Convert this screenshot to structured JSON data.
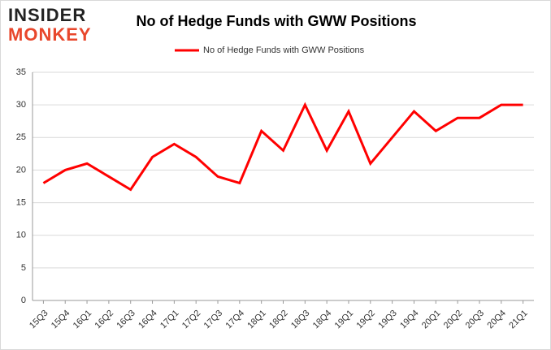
{
  "logo": {
    "line1": "INSIDER",
    "line2": "MONKEY"
  },
  "chart_data": {
    "type": "line",
    "title": "No of Hedge Funds with GWW Positions",
    "categories": [
      "15Q3",
      "15Q4",
      "16Q1",
      "16Q2",
      "16Q3",
      "16Q4",
      "17Q1",
      "17Q2",
      "17Q3",
      "17Q4",
      "18Q1",
      "18Q2",
      "18Q3",
      "18Q4",
      "19Q1",
      "19Q2",
      "19Q3",
      "19Q4",
      "20Q1",
      "20Q2",
      "20Q3",
      "20Q4",
      "21Q1"
    ],
    "series": [
      {
        "name": "No of Hedge Funds with GWW Positions",
        "color": "#ff0000",
        "values": [
          18,
          20,
          21,
          19,
          17,
          22,
          24,
          22,
          19,
          18,
          26,
          23,
          30,
          23,
          29,
          21,
          25,
          29,
          26,
          28,
          28,
          30,
          30
        ]
      }
    ],
    "ylim": [
      0,
      35
    ],
    "yticks": [
      0,
      5,
      10,
      15,
      20,
      25,
      30,
      35
    ],
    "grid": true,
    "legend": "top"
  }
}
